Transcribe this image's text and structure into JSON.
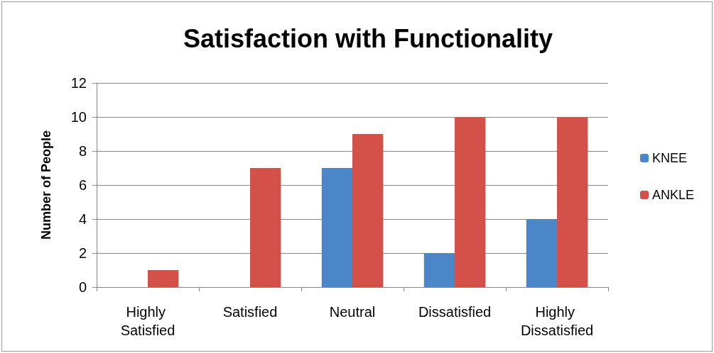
{
  "chart_data": {
    "type": "bar",
    "title": "Satisfaction with Functionality",
    "ylabel": "Number of People",
    "categories": [
      "Highly Satisfied",
      "Satisfied",
      "Neutral",
      "Dissatisfied",
      "Highly Dissatisfied"
    ],
    "series": [
      {
        "name": "KNEE",
        "color": "#4a86c8",
        "values": [
          0,
          0,
          7,
          2,
          4
        ]
      },
      {
        "name": "ANKLE",
        "color": "#d4514a",
        "values": [
          1,
          7,
          9,
          10,
          10
        ]
      }
    ],
    "ylim": [
      0,
      12
    ],
    "yticks": [
      0,
      2,
      4,
      6,
      8,
      10,
      12
    ],
    "grid": "y",
    "legend": "right"
  }
}
